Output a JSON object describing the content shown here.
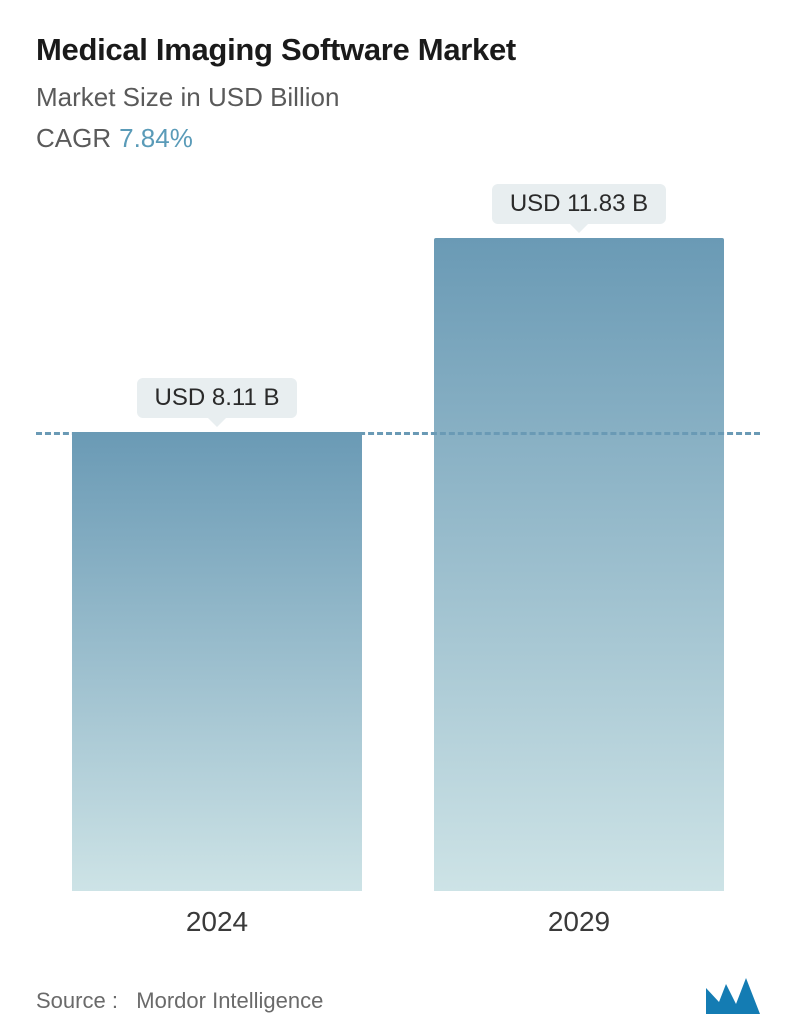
{
  "title": "Medical Imaging Software Market",
  "subtitle": "Market Size in USD Billion",
  "cagr_label": "CAGR",
  "cagr_value": "7.84%",
  "chart": {
    "type": "bar",
    "categories": [
      "2024",
      "2029"
    ],
    "values": [
      8.11,
      11.83
    ],
    "value_labels": [
      "USD 8.11 B",
      "USD 11.83 B"
    ],
    "y_max": 12.5,
    "bar_gradient_top": "#6a9ab5",
    "bar_gradient_bottom": "#cde3e6",
    "bar_width_pct": 100,
    "dashed_line_at": 8.11,
    "dashed_line_color": "#6a9ab5",
    "badge_bg": "#e8eef0",
    "badge_text_color": "#2a2a2a",
    "background_color": "#ffffff",
    "x_label_fontsize": 28,
    "title_fontsize": 31,
    "subtitle_fontsize": 26,
    "value_fontsize": 24
  },
  "footer": {
    "source_prefix": "Source :",
    "source_name": "Mordor Intelligence"
  },
  "logo": {
    "fill": "#147cb3",
    "name": "mordor-logo"
  }
}
